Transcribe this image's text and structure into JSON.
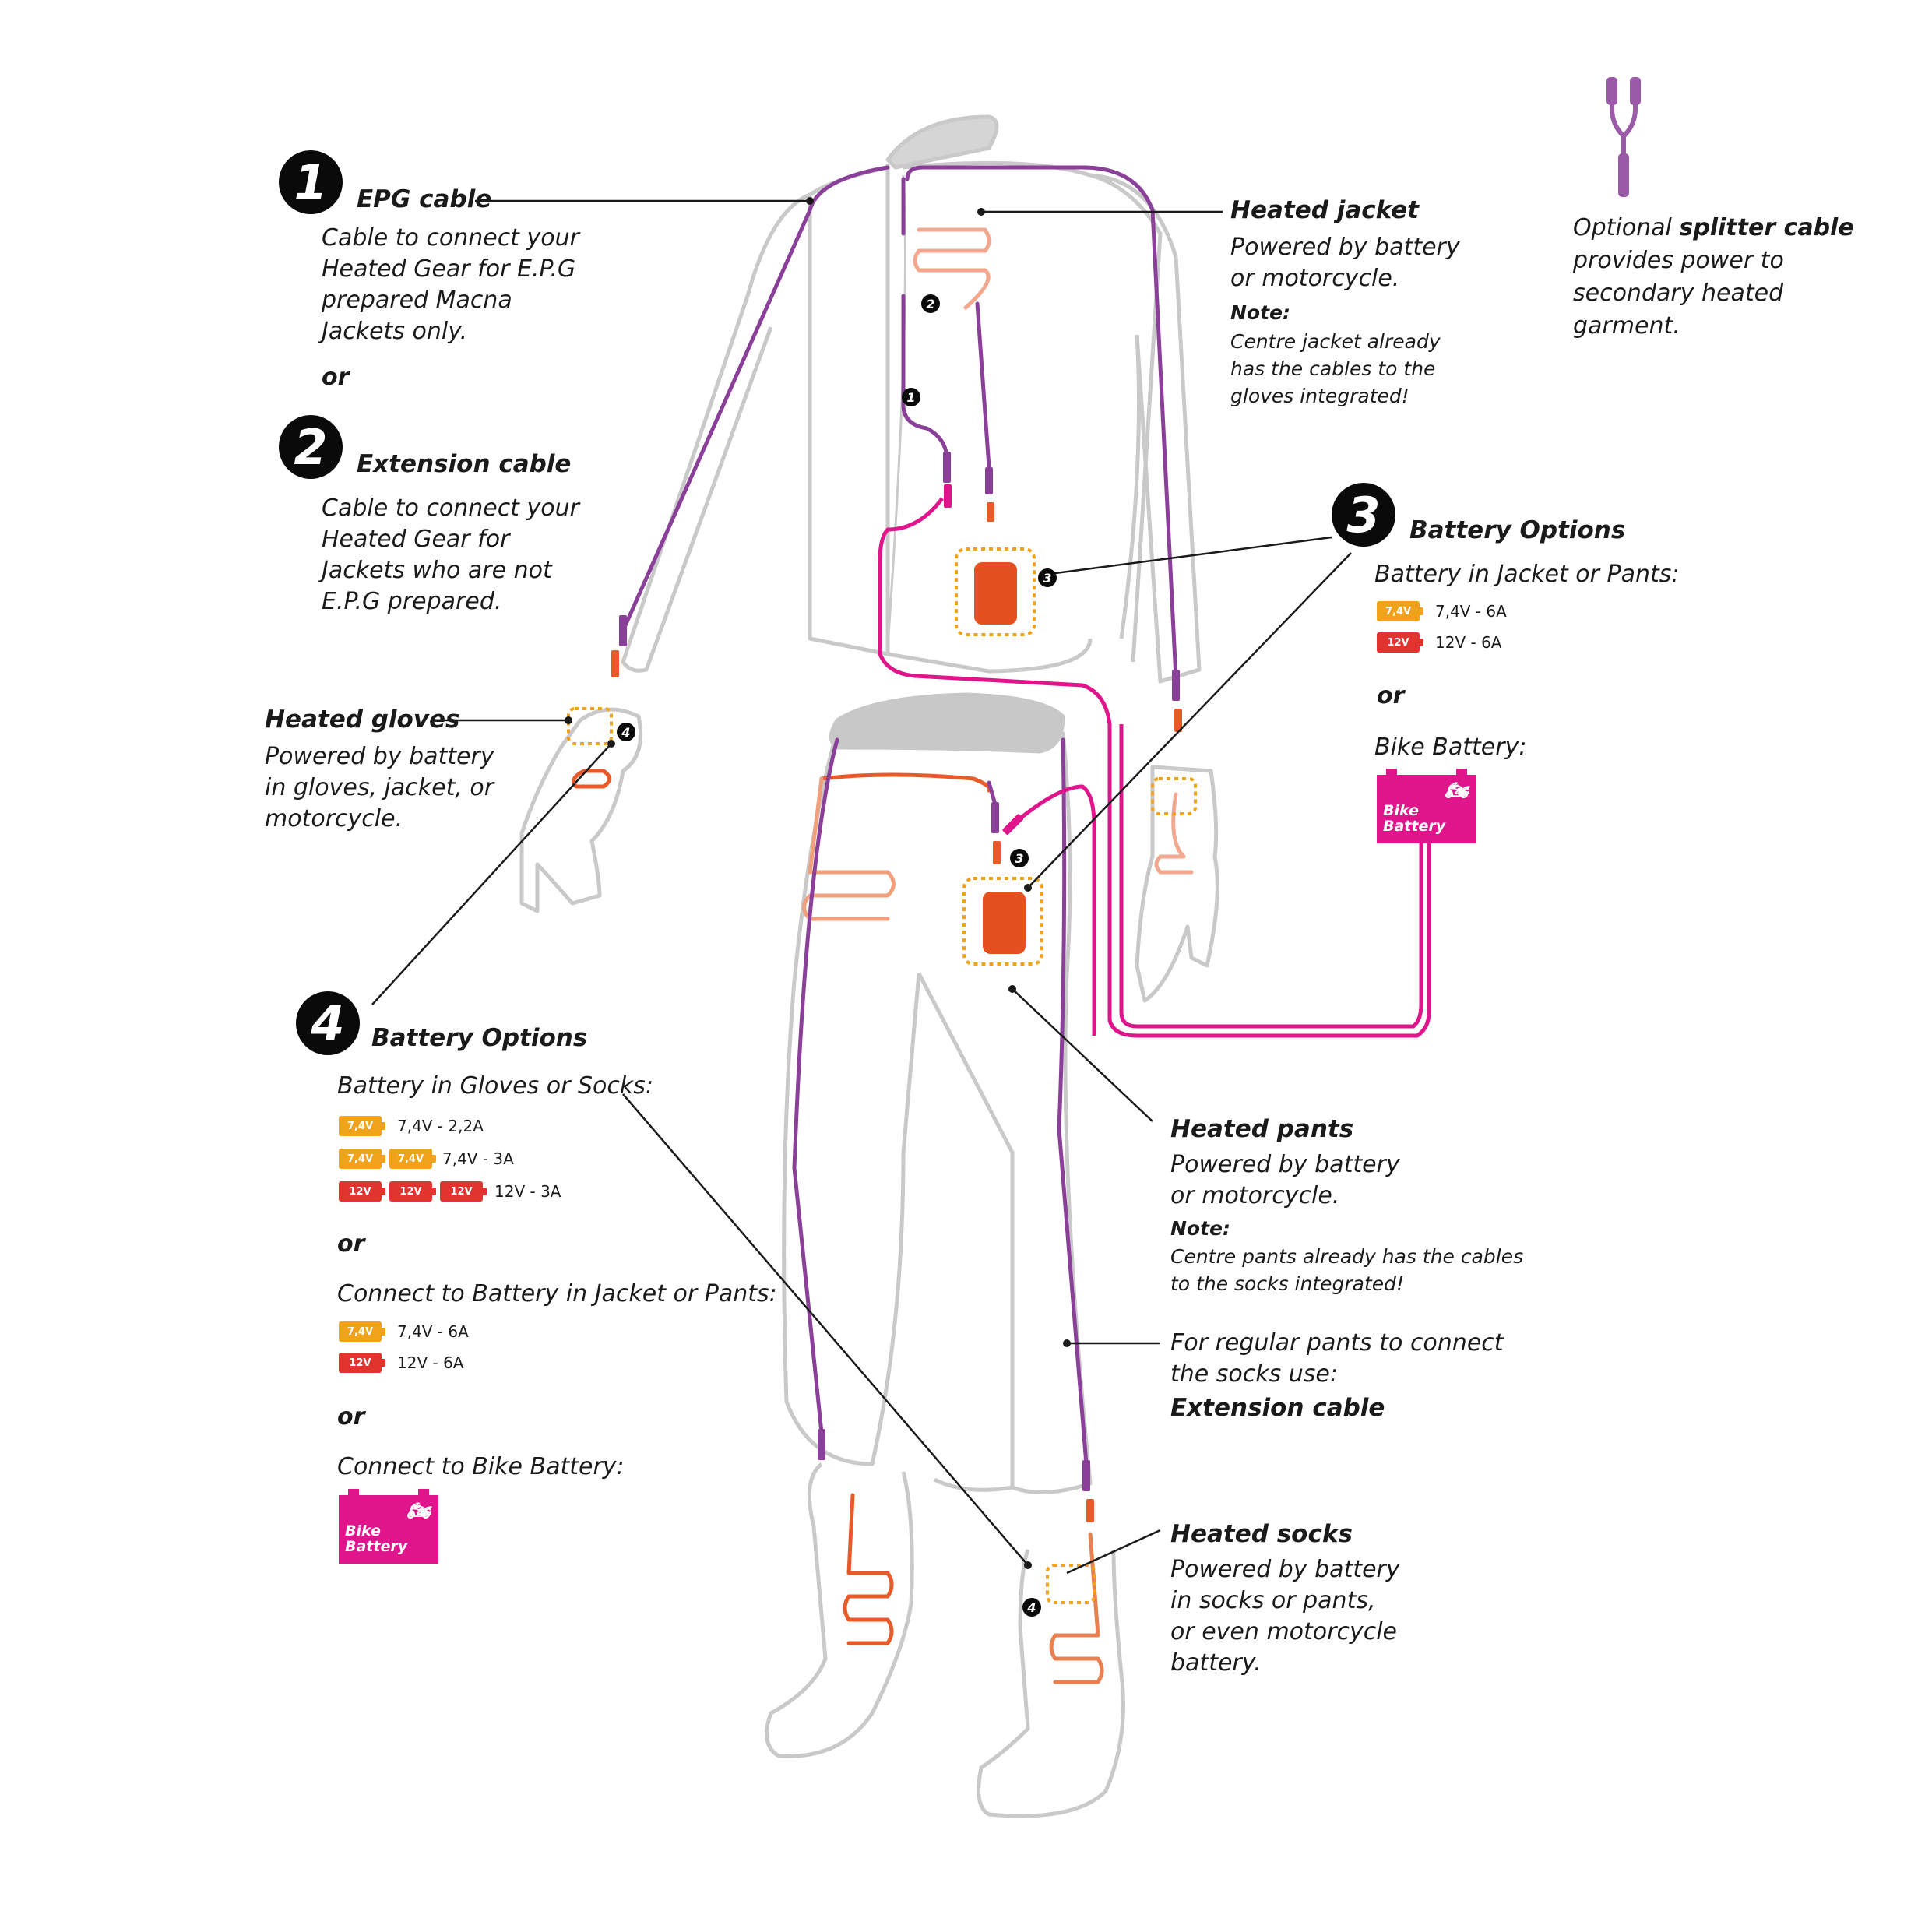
{
  "colors": {
    "outline": "#c9c9c9",
    "cable_purple": "#8a3f99",
    "cable_pink": "#e0148b",
    "heater_orange": "#e85a2a",
    "battery_orange": "#e4501f",
    "battery_yellow": "#f0a21b",
    "battery_red": "#e1332f",
    "bike_battery": "#e0148b"
  },
  "option1": {
    "number": "1",
    "title": "EPG cable",
    "desc": [
      "Cable to connect your",
      "Heated Gear for E.P.G",
      "prepared Macna",
      "Jackets only."
    ]
  },
  "or1": "or",
  "option2": {
    "number": "2",
    "title": "Extension cable",
    "desc": [
      "Cable to connect your",
      "Heated Gear for",
      "Jackets who are not",
      "E.P.G prepared."
    ]
  },
  "gloves": {
    "title": "Heated gloves",
    "desc": [
      "Powered by battery",
      "in gloves, jacket, or",
      "motorcycle."
    ]
  },
  "option4": {
    "number": "4",
    "title": "Battery Options",
    "sub1": "Battery in Gloves or Socks:",
    "specs1": [
      {
        "badges": [
          "7,4V"
        ],
        "text": "7,4V - 2,2A"
      },
      {
        "badges": [
          "7,4V",
          "7,4V"
        ],
        "text": "7,4V - 3A"
      },
      {
        "badges": [
          "12V",
          "12V",
          "12V"
        ],
        "text": "12V - 3A"
      }
    ],
    "or_a": "or",
    "sub2": "Connect to Battery in Jacket or Pants:",
    "specs2": [
      {
        "badges": [
          "7,4V"
        ],
        "text": "7,4V - 6A"
      },
      {
        "badges": [
          "12V"
        ],
        "text": "12V - 6A"
      }
    ],
    "or_b": "or",
    "sub3": "Connect to Bike Battery:",
    "bike_label": [
      "Bike",
      "Battery"
    ]
  },
  "jacket": {
    "title": "Heated jacket",
    "desc": [
      "Powered by battery",
      "or motorcycle."
    ],
    "note_title": "Note:",
    "note": [
      "Centre jacket already",
      "has the cables to the",
      "gloves integrated!"
    ]
  },
  "splitter": {
    "prefix": "Optional ",
    "bold": "splitter cable",
    "rest": [
      "provides power to",
      "secondary heated",
      "garment."
    ]
  },
  "option3": {
    "number": "3",
    "title": "Battery Options",
    "sub": "Battery in Jacket or Pants:",
    "specs": [
      {
        "badges": [
          "7,4V"
        ],
        "text": "7,4V - 6A"
      },
      {
        "badges": [
          "12V"
        ],
        "text": "12V - 6A"
      }
    ],
    "or": "or",
    "bike_sub": "Bike Battery:",
    "bike_label": [
      "Bike",
      "Battery"
    ]
  },
  "pants": {
    "title": "Heated pants",
    "desc": [
      "Powered by battery",
      "or motorcycle."
    ],
    "note_title": "Note:",
    "note": [
      "Centre pants already has the cables",
      "to the socks integrated!"
    ]
  },
  "regular_pants": {
    "desc": [
      "For regular pants to connect",
      "the socks use:"
    ],
    "bold": "Extension cable"
  },
  "socks": {
    "title": "Heated socks",
    "desc": [
      "Powered by battery",
      "in socks or pants,",
      "or even motorcycle",
      "battery."
    ]
  },
  "markers": {
    "m1": "1",
    "m2": "2",
    "m3": "3",
    "m4": "4"
  }
}
